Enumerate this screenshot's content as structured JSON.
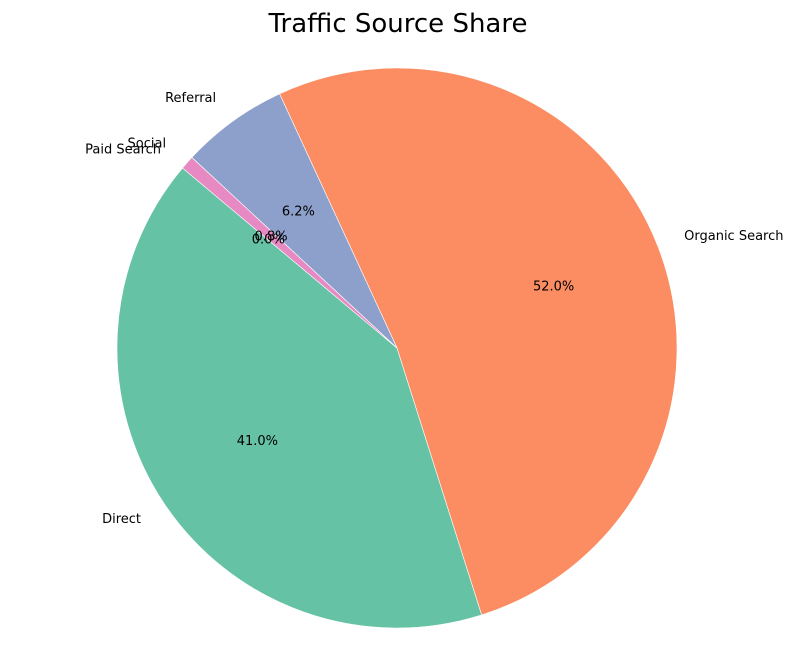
{
  "chart_data": {
    "type": "pie",
    "title": "Traffic Source Share",
    "slices": [
      {
        "label": "Direct",
        "value": 41.0,
        "pct_label": "41.0%",
        "color": "#66c2a5"
      },
      {
        "label": "Organic Search",
        "value": 52.0,
        "pct_label": "52.0%",
        "color": "#fc8d62"
      },
      {
        "label": "Referral",
        "value": 6.2,
        "pct_label": "6.2%",
        "color": "#8da0cb"
      },
      {
        "label": "Social",
        "value": 0.8,
        "pct_label": "0.8%",
        "color": "#e78ac3"
      },
      {
        "label": "Paid Search",
        "value": 0.0,
        "pct_label": "0.0%",
        "color": "#a6d854"
      }
    ],
    "start_angle_deg": 140,
    "direction": "counterclockwise"
  }
}
